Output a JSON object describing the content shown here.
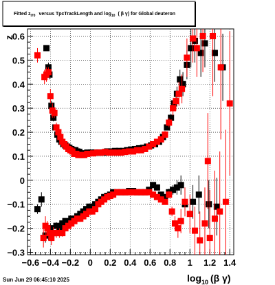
{
  "window": {
    "title_main": "Fitted z",
    "title_sub": "I70",
    "title_rest": "versus TpcTrackLength and log",
    "title_log_sub": "10",
    "title_tail": "( β γ) for Global deuteron",
    "footer": "Sun Jun 29 06:45:10 2025"
  },
  "chart_data": {
    "type": "scatter",
    "title": "Fitted z_{I70} versus TpcTrackLength and log_{10}(β γ) for Global deuteron",
    "xlabel": "log10(β γ)",
    "ylabel": "z",
    "xlabel_main": "log",
    "xlabel_sub": "10",
    "xlabel_tail": "(β γ)",
    "xlim": [
      -0.63,
      1.44
    ],
    "ylim": [
      -0.31,
      0.63
    ],
    "grid": true,
    "x_ticks": [
      -0.6,
      -0.4,
      -0.2,
      0,
      0.2,
      0.4,
      0.6,
      0.8,
      1,
      1.2,
      1.4
    ],
    "x_tick_labels": [
      "−0.6",
      "−0.4",
      "−0.2",
      "0",
      "0.2",
      "0.4",
      "0.6",
      "0.8",
      "1",
      "1.2",
      "1.4"
    ],
    "y_ticks": [
      -0.3,
      -0.2,
      -0.1,
      0,
      0.1,
      0.2,
      0.3,
      0.4,
      0.5,
      0.6
    ],
    "y_tick_labels": [
      "−0.3",
      "−0.2",
      "−0.1",
      "0",
      "0.1",
      "0.2",
      "0.3",
      "0.4",
      "0.5",
      "0.6"
    ],
    "series": [
      {
        "color": "#000000",
        "marker": "square",
        "points": [
          [
            -0.44,
            0.55,
            0.01
          ],
          [
            -0.42,
            0.47,
            0.02
          ],
          [
            -0.41,
            0.44,
            0.02
          ],
          [
            -0.39,
            0.31,
            0.02
          ],
          [
            -0.37,
            0.26,
            0.015
          ],
          [
            -0.35,
            0.22,
            0.01
          ],
          [
            -0.33,
            0.19,
            0.01
          ],
          [
            -0.31,
            0.17,
            0.008
          ],
          [
            -0.29,
            0.16,
            0.008
          ],
          [
            -0.27,
            0.15,
            0.006
          ],
          [
            -0.25,
            0.145,
            0.006
          ],
          [
            -0.23,
            0.14,
            0.005
          ],
          [
            -0.21,
            0.135,
            0.005
          ],
          [
            -0.19,
            0.13,
            0.005
          ],
          [
            -0.17,
            0.125,
            0.004
          ],
          [
            -0.15,
            0.125,
            0.004
          ],
          [
            -0.13,
            0.12,
            0.004
          ],
          [
            -0.11,
            0.118,
            0.004
          ],
          [
            -0.09,
            0.112,
            0.004
          ],
          [
            -0.07,
            0.11,
            0.004
          ],
          [
            -0.05,
            0.112,
            0.004
          ],
          [
            -0.03,
            0.115,
            0.004
          ],
          [
            0.01,
            0.115,
            0.004
          ],
          [
            0.05,
            0.115,
            0.004
          ],
          [
            0.09,
            0.115,
            0.004
          ],
          [
            0.13,
            0.115,
            0.004
          ],
          [
            0.17,
            0.12,
            0.004
          ],
          [
            0.21,
            0.12,
            0.004
          ],
          [
            0.25,
            0.122,
            0.004
          ],
          [
            0.29,
            0.122,
            0.004
          ],
          [
            0.33,
            0.122,
            0.004
          ],
          [
            0.37,
            0.125,
            0.004
          ],
          [
            0.41,
            0.128,
            0.004
          ],
          [
            0.45,
            0.13,
            0.004
          ],
          [
            0.49,
            0.133,
            0.005
          ],
          [
            0.53,
            0.135,
            0.005
          ],
          [
            0.57,
            0.14,
            0.005
          ],
          [
            0.61,
            0.145,
            0.006
          ],
          [
            0.65,
            0.15,
            0.006
          ],
          [
            0.69,
            0.16,
            0.008
          ],
          [
            0.73,
            0.18,
            0.01
          ],
          [
            0.77,
            0.22,
            0.012
          ],
          [
            0.81,
            0.26,
            0.015
          ],
          [
            0.84,
            0.32,
            0.02
          ],
          [
            0.87,
            0.36,
            0.03
          ],
          [
            0.9,
            0.42,
            0.04
          ],
          [
            0.93,
            0.4,
            0.05
          ],
          [
            0.97,
            0.48,
            0.06
          ],
          [
            1.01,
            0.55,
            0.08
          ],
          [
            1.05,
            0.58,
            0.09
          ],
          [
            1.11,
            0.53,
            0.1
          ],
          [
            1.15,
            0.57,
            0.1
          ],
          [
            1.25,
            0.53,
            0.12
          ],
          [
            1.33,
            0.47,
            0.14
          ],
          [
            -0.53,
            -0.12,
            0.02
          ],
          [
            -0.49,
            -0.08,
            0.03
          ],
          [
            -0.45,
            -0.23,
            0.03
          ],
          [
            -0.42,
            -0.23,
            0.02
          ],
          [
            -0.4,
            -0.2,
            0.02
          ],
          [
            -0.37,
            -0.22,
            0.02
          ],
          [
            -0.34,
            -0.19,
            0.015
          ],
          [
            -0.31,
            -0.2,
            0.015
          ],
          [
            -0.28,
            -0.18,
            0.012
          ],
          [
            -0.25,
            -0.17,
            0.01
          ],
          [
            -0.22,
            -0.18,
            0.01
          ],
          [
            -0.19,
            -0.16,
            0.01
          ],
          [
            -0.16,
            -0.16,
            0.008
          ],
          [
            -0.13,
            -0.15,
            0.008
          ],
          [
            -0.1,
            -0.14,
            0.008
          ],
          [
            -0.07,
            -0.13,
            0.007
          ],
          [
            -0.04,
            -0.12,
            0.006
          ],
          [
            -0.01,
            -0.11,
            0.006
          ],
          [
            0.02,
            -0.11,
            0.006
          ],
          [
            0.05,
            -0.1,
            0.006
          ],
          [
            0.08,
            -0.09,
            0.006
          ],
          [
            0.11,
            -0.08,
            0.006
          ],
          [
            0.14,
            -0.07,
            0.006
          ],
          [
            0.17,
            -0.065,
            0.006
          ],
          [
            0.2,
            -0.06,
            0.006
          ],
          [
            0.23,
            -0.05,
            0.006
          ],
          [
            0.27,
            -0.05,
            0.006
          ],
          [
            0.31,
            -0.05,
            0.006
          ],
          [
            0.35,
            -0.05,
            0.006
          ],
          [
            0.39,
            -0.045,
            0.006
          ],
          [
            0.43,
            -0.045,
            0.006
          ],
          [
            0.47,
            -0.05,
            0.006
          ],
          [
            0.51,
            -0.05,
            0.006
          ],
          [
            0.55,
            -0.05,
            0.006
          ],
          [
            0.59,
            -0.04,
            0.006
          ],
          [
            0.63,
            -0.02,
            0.008
          ],
          [
            0.67,
            -0.03,
            0.008
          ],
          [
            0.71,
            -0.06,
            0.01
          ],
          [
            0.75,
            -0.07,
            0.012
          ],
          [
            0.79,
            -0.05,
            0.015
          ],
          [
            0.83,
            -0.04,
            0.02
          ],
          [
            0.87,
            -0.03,
            0.03
          ],
          [
            0.91,
            -0.02,
            0.04
          ],
          [
            0.95,
            -0.1,
            0.05
          ],
          [
            1.03,
            -0.09,
            0.07
          ],
          [
            1.09,
            -0.06,
            0.08
          ],
          [
            1.19,
            -0.1,
            0.1
          ],
          [
            1.27,
            -0.11,
            0.12
          ]
        ]
      },
      {
        "color": "#ff0000",
        "marker": "square",
        "points": [
          [
            -0.53,
            0.52,
            0.03
          ],
          [
            -0.46,
            0.43,
            0.03
          ],
          [
            -0.44,
            0.44,
            0.03
          ],
          [
            -0.42,
            0.45,
            0.02
          ],
          [
            -0.4,
            0.35,
            0.03
          ],
          [
            -0.38,
            0.29,
            0.03
          ],
          [
            -0.36,
            0.28,
            0.02
          ],
          [
            -0.34,
            0.22,
            0.02
          ],
          [
            -0.32,
            0.2,
            0.015
          ],
          [
            -0.3,
            0.18,
            0.012
          ],
          [
            -0.28,
            0.16,
            0.01
          ],
          [
            -0.26,
            0.15,
            0.01
          ],
          [
            -0.24,
            0.14,
            0.008
          ],
          [
            -0.22,
            0.13,
            0.007
          ],
          [
            -0.2,
            0.125,
            0.006
          ],
          [
            -0.18,
            0.12,
            0.006
          ],
          [
            -0.16,
            0.11,
            0.005
          ],
          [
            -0.14,
            0.11,
            0.005
          ],
          [
            -0.12,
            0.105,
            0.005
          ],
          [
            -0.1,
            0.105,
            0.005
          ],
          [
            -0.08,
            0.105,
            0.005
          ],
          [
            -0.06,
            0.105,
            0.005
          ],
          [
            -0.03,
            0.11,
            0.005
          ],
          [
            0.03,
            0.112,
            0.005
          ],
          [
            0.07,
            0.115,
            0.005
          ],
          [
            0.11,
            0.115,
            0.005
          ],
          [
            0.15,
            0.118,
            0.005
          ],
          [
            0.19,
            0.115,
            0.005
          ],
          [
            0.23,
            0.115,
            0.005
          ],
          [
            0.27,
            0.115,
            0.005
          ],
          [
            0.31,
            0.115,
            0.005
          ],
          [
            0.35,
            0.118,
            0.005
          ],
          [
            0.39,
            0.12,
            0.005
          ],
          [
            0.43,
            0.12,
            0.005
          ],
          [
            0.47,
            0.125,
            0.005
          ],
          [
            0.51,
            0.125,
            0.005
          ],
          [
            0.55,
            0.13,
            0.006
          ],
          [
            0.59,
            0.14,
            0.006
          ],
          [
            0.63,
            0.15,
            0.008
          ],
          [
            0.67,
            0.16,
            0.01
          ],
          [
            0.71,
            0.17,
            0.012
          ],
          [
            0.75,
            0.19,
            0.015
          ],
          [
            0.79,
            0.24,
            0.02
          ],
          [
            0.83,
            0.3,
            0.03
          ],
          [
            0.86,
            0.33,
            0.04
          ],
          [
            0.89,
            0.36,
            0.05
          ],
          [
            0.92,
            0.38,
            0.06
          ],
          [
            0.97,
            0.51,
            0.08
          ],
          [
            1.03,
            0.59,
            0.1
          ],
          [
            1.07,
            0.55,
            0.12
          ],
          [
            1.13,
            0.6,
            0.15
          ],
          [
            1.18,
            0.08,
            0.2
          ],
          [
            1.23,
            0.6,
            0.25
          ],
          [
            1.31,
            0.47,
            0.3
          ],
          [
            1.4,
            0.32,
            0.3
          ],
          [
            -0.47,
            -0.24,
            0.04
          ],
          [
            -0.45,
            -0.19,
            0.04
          ],
          [
            -0.43,
            -0.2,
            0.03
          ],
          [
            -0.41,
            -0.22,
            0.03
          ],
          [
            -0.39,
            -0.24,
            0.03
          ],
          [
            -0.37,
            -0.22,
            0.025
          ],
          [
            -0.34,
            -0.22,
            0.02
          ],
          [
            -0.31,
            -0.22,
            0.02
          ],
          [
            -0.28,
            -0.22,
            0.015
          ],
          [
            -0.25,
            -0.2,
            0.012
          ],
          [
            -0.22,
            -0.19,
            0.01
          ],
          [
            -0.19,
            -0.18,
            0.01
          ],
          [
            -0.16,
            -0.17,
            0.008
          ],
          [
            -0.13,
            -0.16,
            0.008
          ],
          [
            -0.1,
            -0.16,
            0.007
          ],
          [
            -0.07,
            -0.15,
            0.007
          ],
          [
            -0.04,
            -0.14,
            0.006
          ],
          [
            -0.01,
            -0.13,
            0.006
          ],
          [
            0.02,
            -0.13,
            0.006
          ],
          [
            0.05,
            -0.12,
            0.006
          ],
          [
            0.08,
            -0.1,
            0.006
          ],
          [
            0.11,
            -0.09,
            0.006
          ],
          [
            0.14,
            -0.08,
            0.006
          ],
          [
            0.17,
            -0.07,
            0.006
          ],
          [
            0.2,
            -0.065,
            0.006
          ],
          [
            0.23,
            -0.06,
            0.006
          ],
          [
            0.27,
            -0.05,
            0.006
          ],
          [
            0.31,
            -0.05,
            0.006
          ],
          [
            0.35,
            -0.05,
            0.006
          ],
          [
            0.39,
            -0.05,
            0.006
          ],
          [
            0.43,
            -0.05,
            0.006
          ],
          [
            0.47,
            -0.05,
            0.006
          ],
          [
            0.51,
            -0.05,
            0.006
          ],
          [
            0.55,
            -0.05,
            0.006
          ],
          [
            0.59,
            -0.05,
            0.006
          ],
          [
            0.63,
            -0.06,
            0.008
          ],
          [
            0.67,
            -0.07,
            0.008
          ],
          [
            0.71,
            -0.08,
            0.01
          ],
          [
            0.75,
            -0.09,
            0.012
          ],
          [
            0.79,
            -0.06,
            0.015
          ],
          [
            0.82,
            -0.13,
            0.02
          ],
          [
            0.85,
            -0.18,
            0.03
          ],
          [
            0.88,
            -0.2,
            0.04
          ],
          [
            0.91,
            -0.17,
            0.05
          ],
          [
            0.95,
            -0.09,
            0.06
          ],
          [
            1.0,
            -0.14,
            0.08
          ],
          [
            1.05,
            -0.21,
            0.1
          ],
          [
            1.1,
            -0.25,
            0.12
          ],
          [
            1.15,
            -0.18,
            0.15
          ],
          [
            1.2,
            -0.24,
            0.2
          ],
          [
            1.25,
            -0.16,
            0.2
          ],
          [
            1.3,
            -0.13,
            0.25
          ],
          [
            1.36,
            -0.09,
            0.3
          ]
        ]
      }
    ]
  }
}
